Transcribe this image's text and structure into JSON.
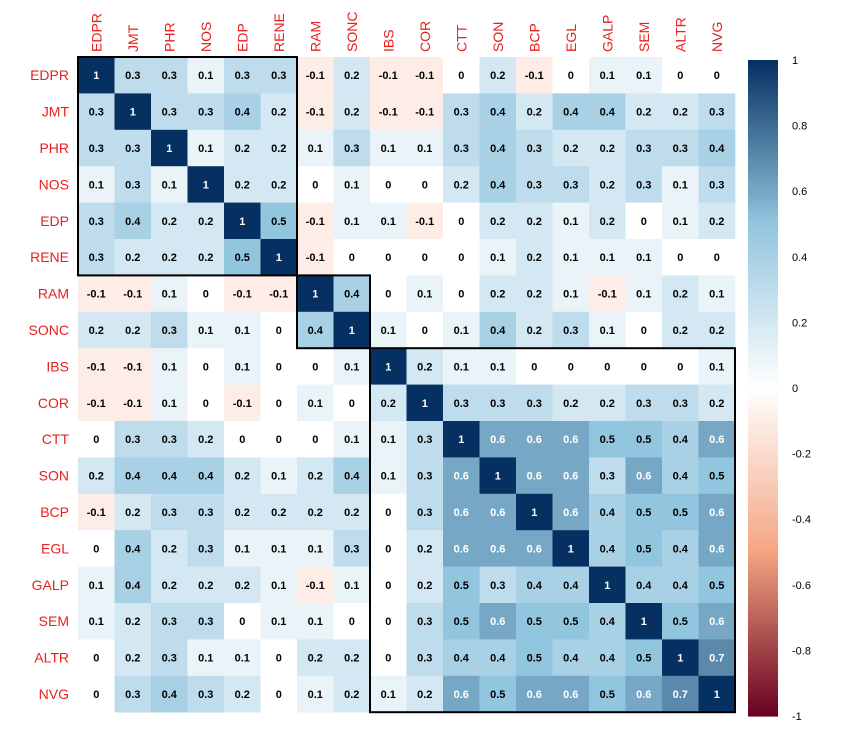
{
  "chart_data": {
    "type": "heatmap",
    "variables": [
      "EDPR",
      "JMT",
      "PHR",
      "NOS",
      "EDP",
      "RENE",
      "RAM",
      "SONC",
      "IBS",
      "COR",
      "CTT",
      "SON",
      "BCP",
      "EGL",
      "GALP",
      "SEM",
      "ALTR",
      "NVG"
    ],
    "matrix": [
      [
        1,
        0.3,
        0.3,
        0.1,
        0.3,
        0.3,
        -0.1,
        0.2,
        -0.1,
        -0.1,
        0,
        0.2,
        -0.1,
        0,
        0.1,
        0.1,
        0,
        0
      ],
      [
        0.3,
        1,
        0.3,
        0.3,
        0.4,
        0.2,
        -0.1,
        0.2,
        -0.1,
        -0.1,
        0.3,
        0.4,
        0.2,
        0.4,
        0.4,
        0.2,
        0.2,
        0.3
      ],
      [
        0.3,
        0.3,
        1,
        0.1,
        0.2,
        0.2,
        0.1,
        0.3,
        0.1,
        0.1,
        0.3,
        0.4,
        0.3,
        0.2,
        0.2,
        0.3,
        0.3,
        0.4
      ],
      [
        0.1,
        0.3,
        0.1,
        1,
        0.2,
        0.2,
        0,
        0.1,
        0,
        0,
        0.2,
        0.4,
        0.3,
        0.3,
        0.2,
        0.3,
        0.1,
        0.3
      ],
      [
        0.3,
        0.4,
        0.2,
        0.2,
        1,
        0.5,
        -0.1,
        0.1,
        0.1,
        -0.1,
        0,
        0.2,
        0.2,
        0.1,
        0.2,
        0,
        0.1,
        0.2
      ],
      [
        0.3,
        0.2,
        0.2,
        0.2,
        0.5,
        1,
        -0.1,
        0,
        0,
        0,
        0,
        0.1,
        0.2,
        0.1,
        0.1,
        0.1,
        0,
        0
      ],
      [
        -0.1,
        -0.1,
        0.1,
        0,
        -0.1,
        -0.1,
        1,
        0.4,
        0,
        0.1,
        0,
        0.2,
        0.2,
        0.1,
        -0.1,
        0.1,
        0.2,
        0.1
      ],
      [
        0.2,
        0.2,
        0.3,
        0.1,
        0.1,
        0,
        0.4,
        1,
        0.1,
        0,
        0.1,
        0.4,
        0.2,
        0.3,
        0.1,
        0,
        0.2,
        0.2
      ],
      [
        -0.1,
        -0.1,
        0.1,
        0,
        0.1,
        0,
        0,
        0.1,
        1,
        0.2,
        0.1,
        0.1,
        0,
        0,
        0,
        0,
        0,
        0.1
      ],
      [
        -0.1,
        -0.1,
        0.1,
        0,
        -0.1,
        0,
        0.1,
        0,
        0.2,
        1,
        0.3,
        0.3,
        0.3,
        0.2,
        0.2,
        0.3,
        0.3,
        0.2
      ],
      [
        0,
        0.3,
        0.3,
        0.2,
        0,
        0,
        0,
        0.1,
        0.1,
        0.3,
        1,
        0.6,
        0.6,
        0.6,
        0.5,
        0.5,
        0.4,
        0.6
      ],
      [
        0.2,
        0.4,
        0.4,
        0.4,
        0.2,
        0.1,
        0.2,
        0.4,
        0.1,
        0.3,
        0.6,
        1,
        0.6,
        0.6,
        0.3,
        0.6,
        0.4,
        0.5
      ],
      [
        -0.1,
        0.2,
        0.3,
        0.3,
        0.2,
        0.2,
        0.2,
        0.2,
        0,
        0.3,
        0.6,
        0.6,
        1,
        0.6,
        0.4,
        0.5,
        0.5,
        0.6
      ],
      [
        0,
        0.4,
        0.2,
        0.3,
        0.1,
        0.1,
        0.1,
        0.3,
        0,
        0.2,
        0.6,
        0.6,
        0.6,
        1,
        0.4,
        0.5,
        0.4,
        0.6
      ],
      [
        0.1,
        0.4,
        0.2,
        0.2,
        0.2,
        0.1,
        -0.1,
        0.1,
        0,
        0.2,
        0.5,
        0.3,
        0.4,
        0.4,
        1,
        0.4,
        0.4,
        0.5
      ],
      [
        0.1,
        0.2,
        0.3,
        0.3,
        0,
        0.1,
        0.1,
        0,
        0,
        0.3,
        0.5,
        0.6,
        0.5,
        0.5,
        0.4,
        1,
        0.5,
        0.6
      ],
      [
        0,
        0.2,
        0.3,
        0.1,
        0.1,
        0,
        0.2,
        0.2,
        0,
        0.3,
        0.4,
        0.4,
        0.5,
        0.4,
        0.4,
        0.5,
        1,
        0.7
      ],
      [
        0,
        0.3,
        0.4,
        0.3,
        0.2,
        0,
        0.1,
        0.2,
        0.1,
        0.2,
        0.6,
        0.5,
        0.6,
        0.6,
        0.5,
        0.6,
        0.7,
        1
      ]
    ],
    "clusters": [
      [
        0,
        5
      ],
      [
        6,
        7
      ],
      [
        8,
        17
      ]
    ],
    "colorbar": {
      "ticks": [
        1,
        0.8,
        0.6,
        0.4,
        0.2,
        0,
        -0.2,
        -0.4,
        -0.6,
        -0.8,
        -1
      ],
      "tick_labels": [
        "1",
        "0.8",
        "0.6",
        "0.4",
        "0.2",
        "0",
        "-0.2",
        "-0.4",
        "-0.6",
        "-0.8",
        "-1"
      ],
      "range": [
        -1,
        1
      ]
    },
    "label_color": "#e8201e",
    "palette": {
      "negative": "#67001f",
      "mid_negative": "#f4a582",
      "zero": "#ffffff",
      "mid_positive": "#92c5de",
      "positive": "#053061"
    },
    "legend_position": "right",
    "title": "",
    "xlabel": "",
    "ylabel": ""
  }
}
